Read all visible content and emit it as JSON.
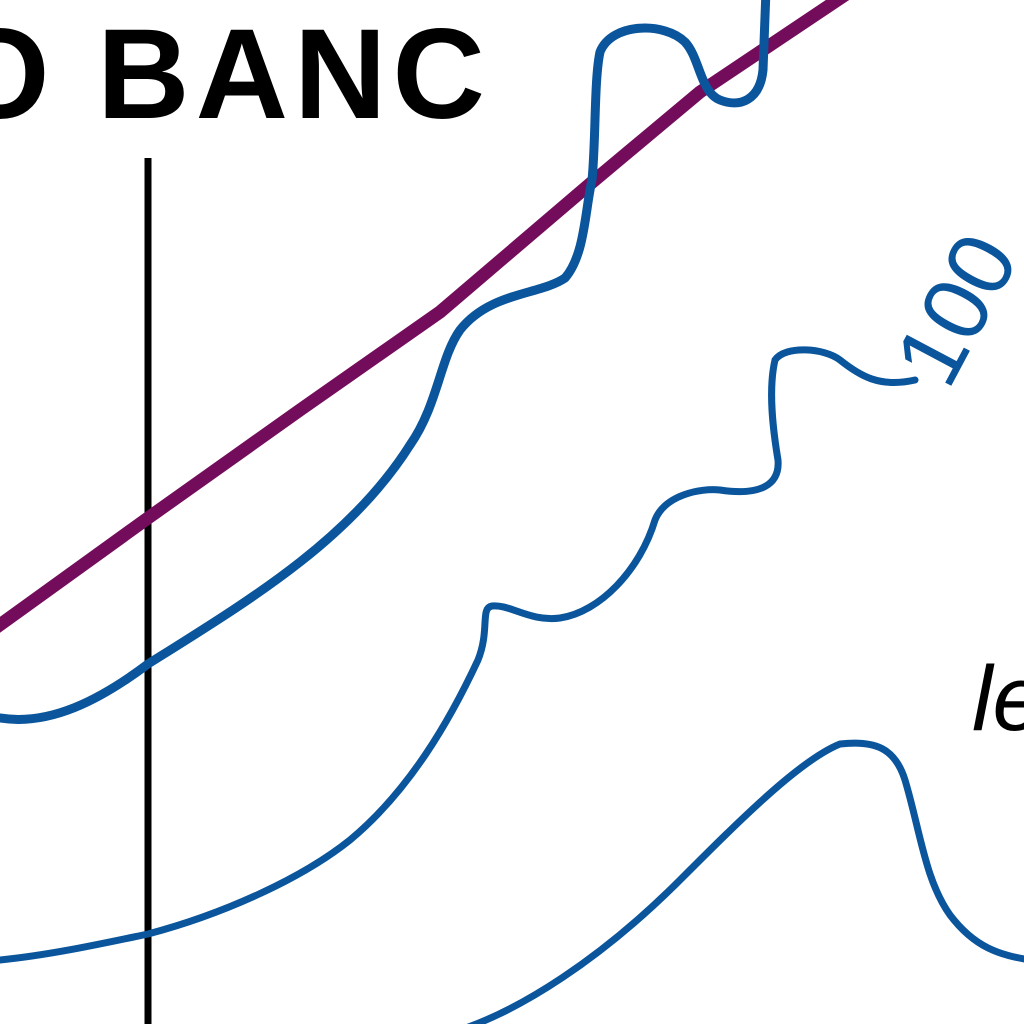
{
  "map": {
    "region_label": "O BANC",
    "depth_label": "100",
    "place_label_fragment": "le",
    "colors": {
      "background": "#ffffff",
      "bathymetric_contour": "#0a559b",
      "boundary_line": "#740c5c",
      "meridian_line": "#000000",
      "text": "#000000",
      "depth_label": "#0a559b"
    }
  }
}
